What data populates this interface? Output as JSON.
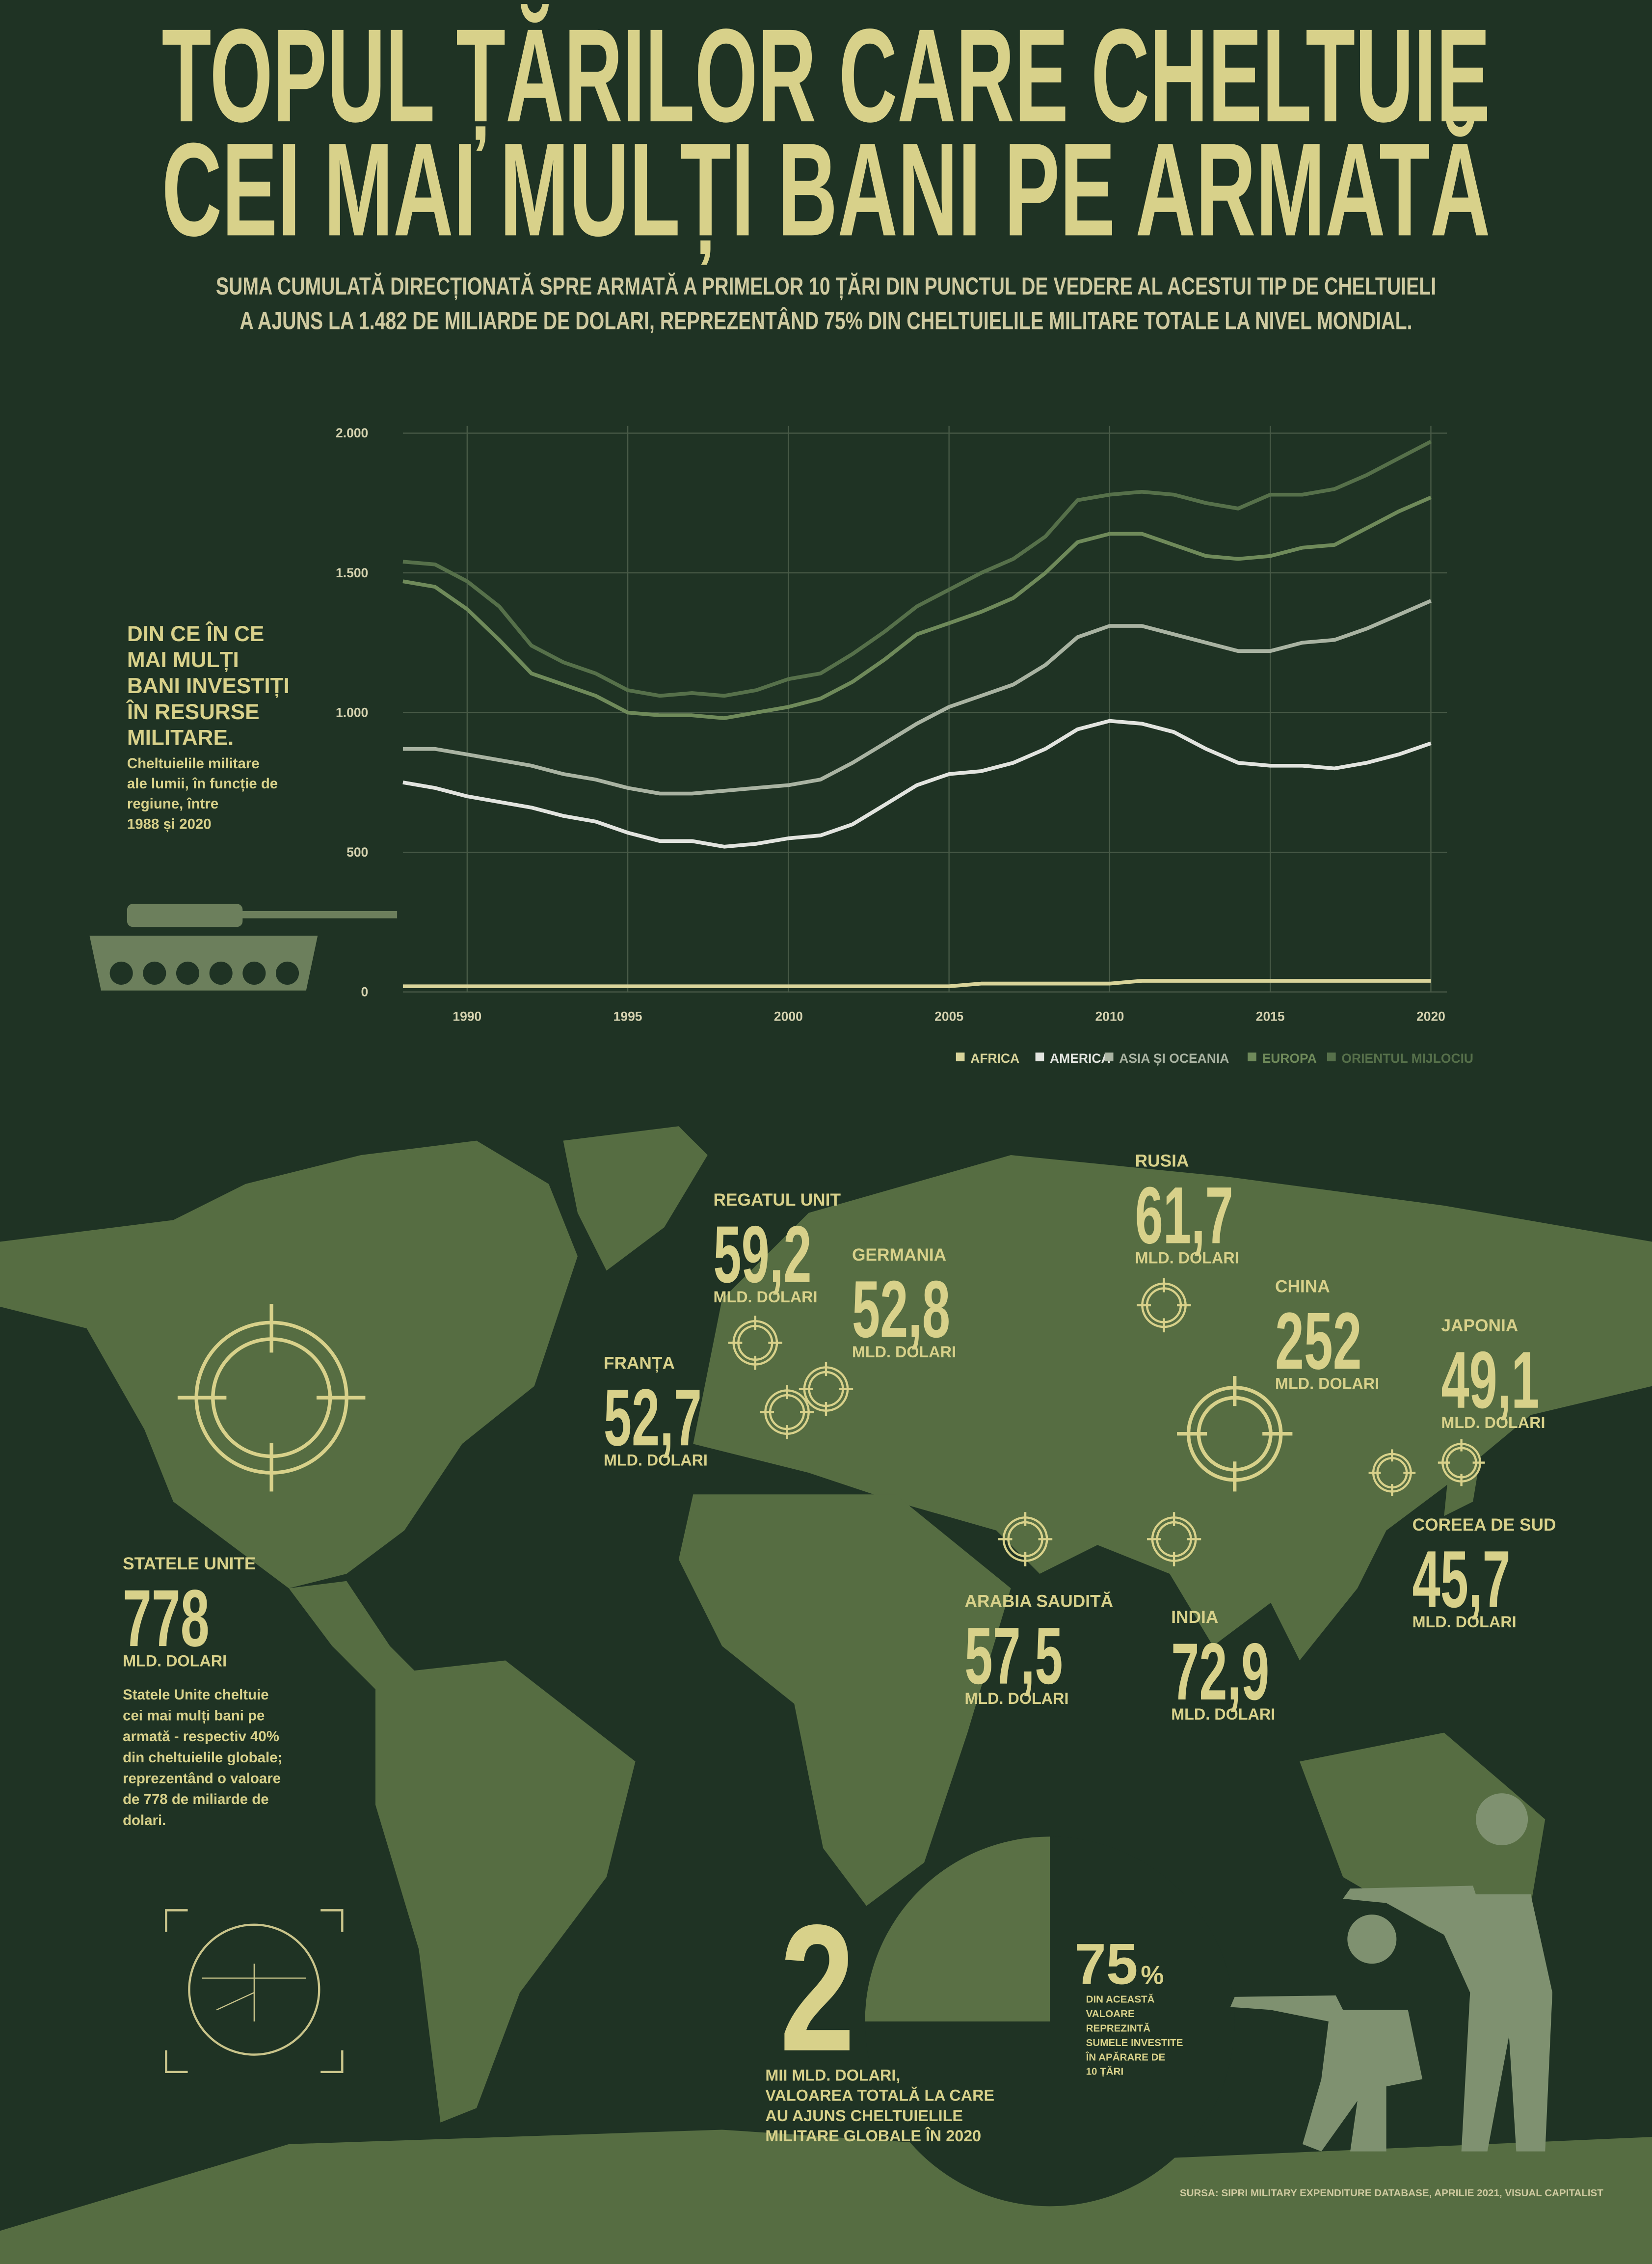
{
  "title": [
    "TOPUL ȚĂRILOR CARE CHELTUIE",
    "CEI MAI MULȚI BANI PE ARMATĂ"
  ],
  "subtitle": [
    "SUMA CUMULATĂ DIRECȚIONATĂ SPRE ARMATĂ A PRIMELOR 10 ȚĂRI DIN PUNCTUL DE VEDERE AL ACESTUI TIP DE CHELTUIELI",
    "A AJUNS LA 1.482 DE MILIARDE DE DOLARI, REPREZENTÂND 75% DIN CHELTUIELILE MILITARE TOTALE LA NIVEL MONDIAL."
  ],
  "intro": {
    "heading": [
      "DIN CE ÎN CE",
      "MAI MULȚI",
      "BANI INVESTIȚI",
      "ÎN RESURSE",
      "MILITARE."
    ],
    "text": [
      "Cheltuielile militare",
      "ale lumii, în funcție de",
      "regiune, între",
      "1988 și 2020"
    ]
  },
  "chart_data": {
    "type": "line",
    "stacked": true,
    "grid": true,
    "x": [
      1988,
      1989,
      1990,
      1991,
      1992,
      1993,
      1994,
      1995,
      1996,
      1997,
      1998,
      1999,
      2000,
      2001,
      2002,
      2003,
      2004,
      2005,
      2006,
      2007,
      2008,
      2009,
      2010,
      2011,
      2012,
      2013,
      2014,
      2015,
      2016,
      2017,
      2018,
      2019,
      2020
    ],
    "xlim": [
      1988,
      2020.5
    ],
    "xticks": [
      1990,
      1995,
      2000,
      2005,
      2010,
      2015,
      2020
    ],
    "ylim": [
      0,
      2000
    ],
    "yticks": [
      0,
      500,
      {
        "value": 1000,
        "label": "1.000"
      },
      {
        "value": 1500,
        "label": "1.500"
      },
      {
        "value": 2000,
        "label": "2.000"
      }
    ],
    "series": [
      {
        "name": "AFRICA",
        "color": "#d9d49a",
        "values": [
          20,
          20,
          20,
          20,
          20,
          20,
          20,
          20,
          20,
          20,
          20,
          20,
          20,
          20,
          20,
          20,
          20,
          20,
          30,
          30,
          30,
          30,
          30,
          40,
          40,
          40,
          40,
          40,
          40,
          40,
          40,
          40,
          40
        ]
      },
      {
        "name": "AMERICA",
        "color": "#e2e4df",
        "values": [
          730,
          710,
          680,
          660,
          640,
          610,
          590,
          550,
          520,
          520,
          500,
          510,
          530,
          540,
          580,
          650,
          720,
          760,
          760,
          790,
          840,
          910,
          940,
          920,
          890,
          830,
          780,
          770,
          770,
          760,
          780,
          810,
          850
        ]
      },
      {
        "name": "ASIA ȘI OCEANIA",
        "color": "#a9b3a2",
        "values": [
          120,
          140,
          150,
          150,
          150,
          150,
          150,
          160,
          170,
          170,
          200,
          200,
          190,
          200,
          220,
          220,
          220,
          240,
          270,
          280,
          300,
          330,
          340,
          350,
          350,
          380,
          400,
          410,
          440,
          460,
          480,
          500,
          510
        ]
      },
      {
        "name": "EUROPA",
        "color": "#6f8a5a",
        "values": [
          600,
          580,
          520,
          430,
          330,
          320,
          300,
          270,
          280,
          280,
          260,
          270,
          280,
          290,
          290,
          300,
          320,
          300,
          300,
          310,
          330,
          340,
          330,
          330,
          320,
          310,
          330,
          340,
          340,
          340,
          360,
          370,
          370
        ]
      },
      {
        "name": "ORIENTUL MIJLOCIU",
        "color": "#56704a",
        "values": [
          70,
          80,
          100,
          120,
          100,
          80,
          80,
          80,
          70,
          80,
          80,
          80,
          100,
          90,
          100,
          100,
          100,
          120,
          140,
          140,
          130,
          150,
          140,
          150,
          180,
          190,
          180,
          220,
          190,
          200,
          190,
          190,
          200
        ]
      }
    ]
  },
  "map": {
    "countries": [
      {
        "name": "REGATUL UNIT",
        "value": "59,2",
        "unit": "MLD. DOLARI"
      },
      {
        "name": "GERMANIA",
        "value": "52,8",
        "unit": "MLD. DOLARI"
      },
      {
        "name": "FRANȚA",
        "value": "52,7",
        "unit": "MLD. DOLARI"
      },
      {
        "name": "RUSIA",
        "value": "61,7",
        "unit": "MLD. DOLARI"
      },
      {
        "name": "CHINA",
        "value": "252",
        "unit": "MLD. DOLARI"
      },
      {
        "name": "JAPONIA",
        "value": "49,1",
        "unit": "MLD. DOLARI"
      },
      {
        "name": "COREEA DE SUD",
        "value": "45,7",
        "unit": "MLD. DOLARI"
      },
      {
        "name": "ARABIA SAUDITĂ",
        "value": "57,5",
        "unit": "MLD. DOLARI"
      },
      {
        "name": "INDIA",
        "value": "72,9",
        "unit": "MLD. DOLARI"
      },
      {
        "name": "STATELE UNITE",
        "value": "778",
        "unit": "MLD. DOLARI"
      }
    ],
    "us_note": [
      "Statele Unite cheltuie",
      "cei mai mulți bani pe",
      "armată - respectiv 40%",
      "din cheltuielile globale;",
      "reprezentând o valoare",
      "de 778 de miliarde de",
      "dolari."
    ]
  },
  "total": {
    "value": "2",
    "text": [
      "MII MLD. DOLARI,",
      "VALOAREA TOTALĂ LA CARE",
      "AU AJUNS CHELTUIELILE",
      "MILITARE GLOBALE ÎN 2020"
    ]
  },
  "share": {
    "value": "75",
    "symbol": "%",
    "text": [
      "DIN ACEASTĂ",
      "VALOARE",
      "REPREZINTĂ",
      "SUMELE INVESTITE",
      "ÎN APĂRARE DE",
      "10 ȚĂRI"
    ]
  },
  "source": "SURSA: SIPRI MILITARY EXPENDITURE DATABASE, APRILIE 2021, VISUAL CAPITALIST"
}
